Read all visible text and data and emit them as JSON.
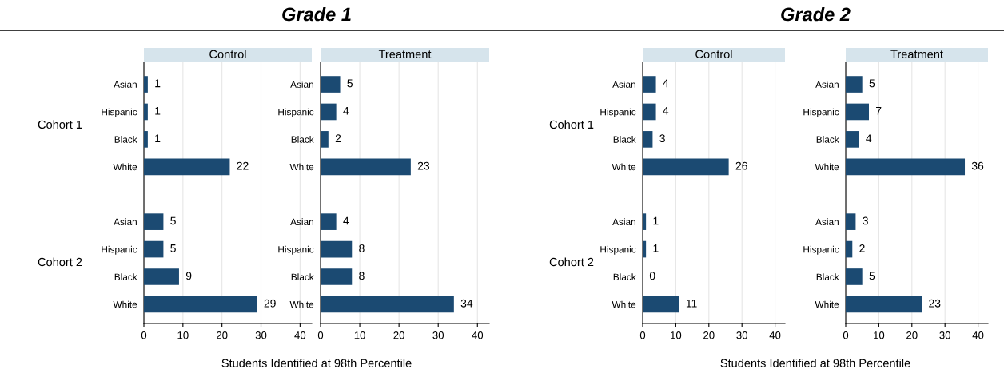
{
  "chart_data": [
    {
      "type": "bar",
      "orientation": "horizontal",
      "title": "Control",
      "xlabel": "Students Identified at 98th Percentile",
      "categories": [
        "Asian",
        "Hispanic",
        "Black",
        "White",
        null,
        "Asian",
        "Hispanic",
        "Black",
        "White"
      ],
      "values": [
        1,
        1,
        1,
        22,
        null,
        5,
        5,
        9,
        29
      ],
      "color": "#1b4a72",
      "xlim": [
        0,
        43
      ],
      "xticks": [
        0,
        10,
        20,
        30,
        40
      ],
      "grid": "x",
      "data_labels": true,
      "annotations": [
        "Grade 1",
        "Cohort 1",
        "Cohort 2"
      ]
    },
    {
      "type": "bar",
      "orientation": "horizontal",
      "title": "Treatment",
      "categories": [
        "Asian",
        "Hispanic",
        "Black",
        "White",
        null,
        "Asian",
        "Hispanic",
        "Black",
        "White"
      ],
      "values": [
        5,
        4,
        2,
        23,
        null,
        4,
        8,
        8,
        34
      ],
      "color": "#1b4a72",
      "xlim": [
        0,
        43
      ],
      "xticks": [
        0,
        10,
        20,
        30,
        40
      ],
      "grid": "x",
      "data_labels": true
    },
    {
      "type": "bar",
      "orientation": "horizontal",
      "title": "Control",
      "xlabel": "Students Identified at 98th Percentile",
      "categories": [
        "Asian",
        "Hispanic",
        "Black",
        "White",
        null,
        "Asian",
        "Hispanic",
        "Black",
        "White"
      ],
      "values": [
        4,
        4,
        3,
        26,
        null,
        1,
        1,
        0,
        11
      ],
      "color": "#1b4a72",
      "xlim": [
        0,
        43
      ],
      "xticks": [
        0,
        10,
        20,
        30,
        40
      ],
      "grid": "x",
      "data_labels": true,
      "annotations": [
        "Grade 2",
        "Cohort 1",
        "Cohort 2"
      ]
    },
    {
      "type": "bar",
      "orientation": "horizontal",
      "title": "Treatment",
      "categories": [
        "Asian",
        "Hispanic",
        "Black",
        "White",
        null,
        "Asian",
        "Hispanic",
        "Black",
        "White"
      ],
      "values": [
        5,
        7,
        4,
        36,
        null,
        3,
        2,
        5,
        23
      ],
      "color": "#1b4a72",
      "xlim": [
        0,
        43
      ],
      "xticks": [
        0,
        10,
        20,
        30,
        40
      ],
      "grid": "x",
      "data_labels": true
    }
  ]
}
